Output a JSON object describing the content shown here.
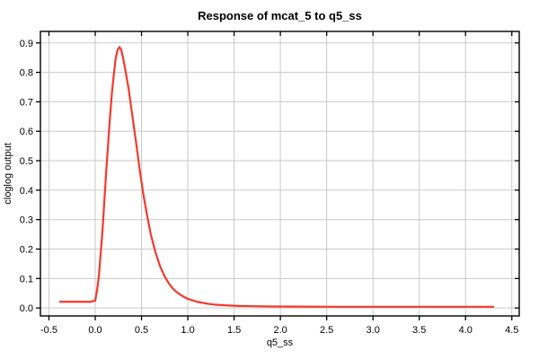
{
  "chart_data": {
    "type": "line",
    "title": "Response of mcat_5 to q5_ss",
    "xlabel": "q5_ss",
    "ylabel": "cloglog output",
    "xlim": [
      -0.592,
      4.58
    ],
    "ylim": [
      -0.027,
      0.939
    ],
    "x_ticks": [
      -0.5,
      0.0,
      0.5,
      1.0,
      1.5,
      2.0,
      2.5,
      3.0,
      3.5,
      4.0,
      4.5
    ],
    "x_tick_labels": [
      "-0.5",
      "0.0",
      "0.5",
      "1.0",
      "1.5",
      "2.0",
      "2.5",
      "3.0",
      "3.5",
      "4.0",
      "4.5"
    ],
    "y_ticks": [
      0.0,
      0.1,
      0.2,
      0.3,
      0.4,
      0.5,
      0.6,
      0.7,
      0.8,
      0.9
    ],
    "y_tick_labels": [
      "0.0",
      "0.1",
      "0.2",
      "0.3",
      "0.4",
      "0.5",
      "0.6",
      "0.7",
      "0.8",
      "0.9"
    ],
    "grid": true,
    "legend": "none",
    "series": [
      {
        "name": "response",
        "color": "#f5392b",
        "points": [
          [
            -0.38,
            0.021
          ],
          [
            -0.2,
            0.021
          ],
          [
            -0.05,
            0.021
          ],
          [
            0.0,
            0.025
          ],
          [
            0.02,
            0.06
          ],
          [
            0.04,
            0.11
          ],
          [
            0.06,
            0.19
          ],
          [
            0.08,
            0.27
          ],
          [
            0.1,
            0.37
          ],
          [
            0.12,
            0.47
          ],
          [
            0.14,
            0.56
          ],
          [
            0.16,
            0.65
          ],
          [
            0.18,
            0.73
          ],
          [
            0.2,
            0.79
          ],
          [
            0.22,
            0.845
          ],
          [
            0.24,
            0.875
          ],
          [
            0.26,
            0.886
          ],
          [
            0.28,
            0.878
          ],
          [
            0.3,
            0.85
          ],
          [
            0.33,
            0.8
          ],
          [
            0.36,
            0.745
          ],
          [
            0.4,
            0.655
          ],
          [
            0.44,
            0.565
          ],
          [
            0.48,
            0.47
          ],
          [
            0.52,
            0.385
          ],
          [
            0.56,
            0.315
          ],
          [
            0.6,
            0.25
          ],
          [
            0.65,
            0.19
          ],
          [
            0.7,
            0.142
          ],
          [
            0.75,
            0.107
          ],
          [
            0.8,
            0.081
          ],
          [
            0.85,
            0.062
          ],
          [
            0.9,
            0.049
          ],
          [
            0.95,
            0.039
          ],
          [
            1.0,
            0.031
          ],
          [
            1.1,
            0.021
          ],
          [
            1.2,
            0.015
          ],
          [
            1.3,
            0.011
          ],
          [
            1.4,
            0.009
          ],
          [
            1.55,
            0.007
          ],
          [
            1.7,
            0.006
          ],
          [
            1.9,
            0.005
          ],
          [
            2.2,
            0.0045
          ],
          [
            2.6,
            0.004
          ],
          [
            3.0,
            0.004
          ],
          [
            3.5,
            0.004
          ],
          [
            4.0,
            0.004
          ],
          [
            4.3,
            0.004
          ]
        ]
      }
    ]
  },
  "style": {
    "background": "#ffffff",
    "grid_color": "#c9c9c9",
    "border_color": "#1f1f1f",
    "tick_color": "#000000",
    "curve_color": "#f5392b",
    "text_color": "#000000"
  }
}
